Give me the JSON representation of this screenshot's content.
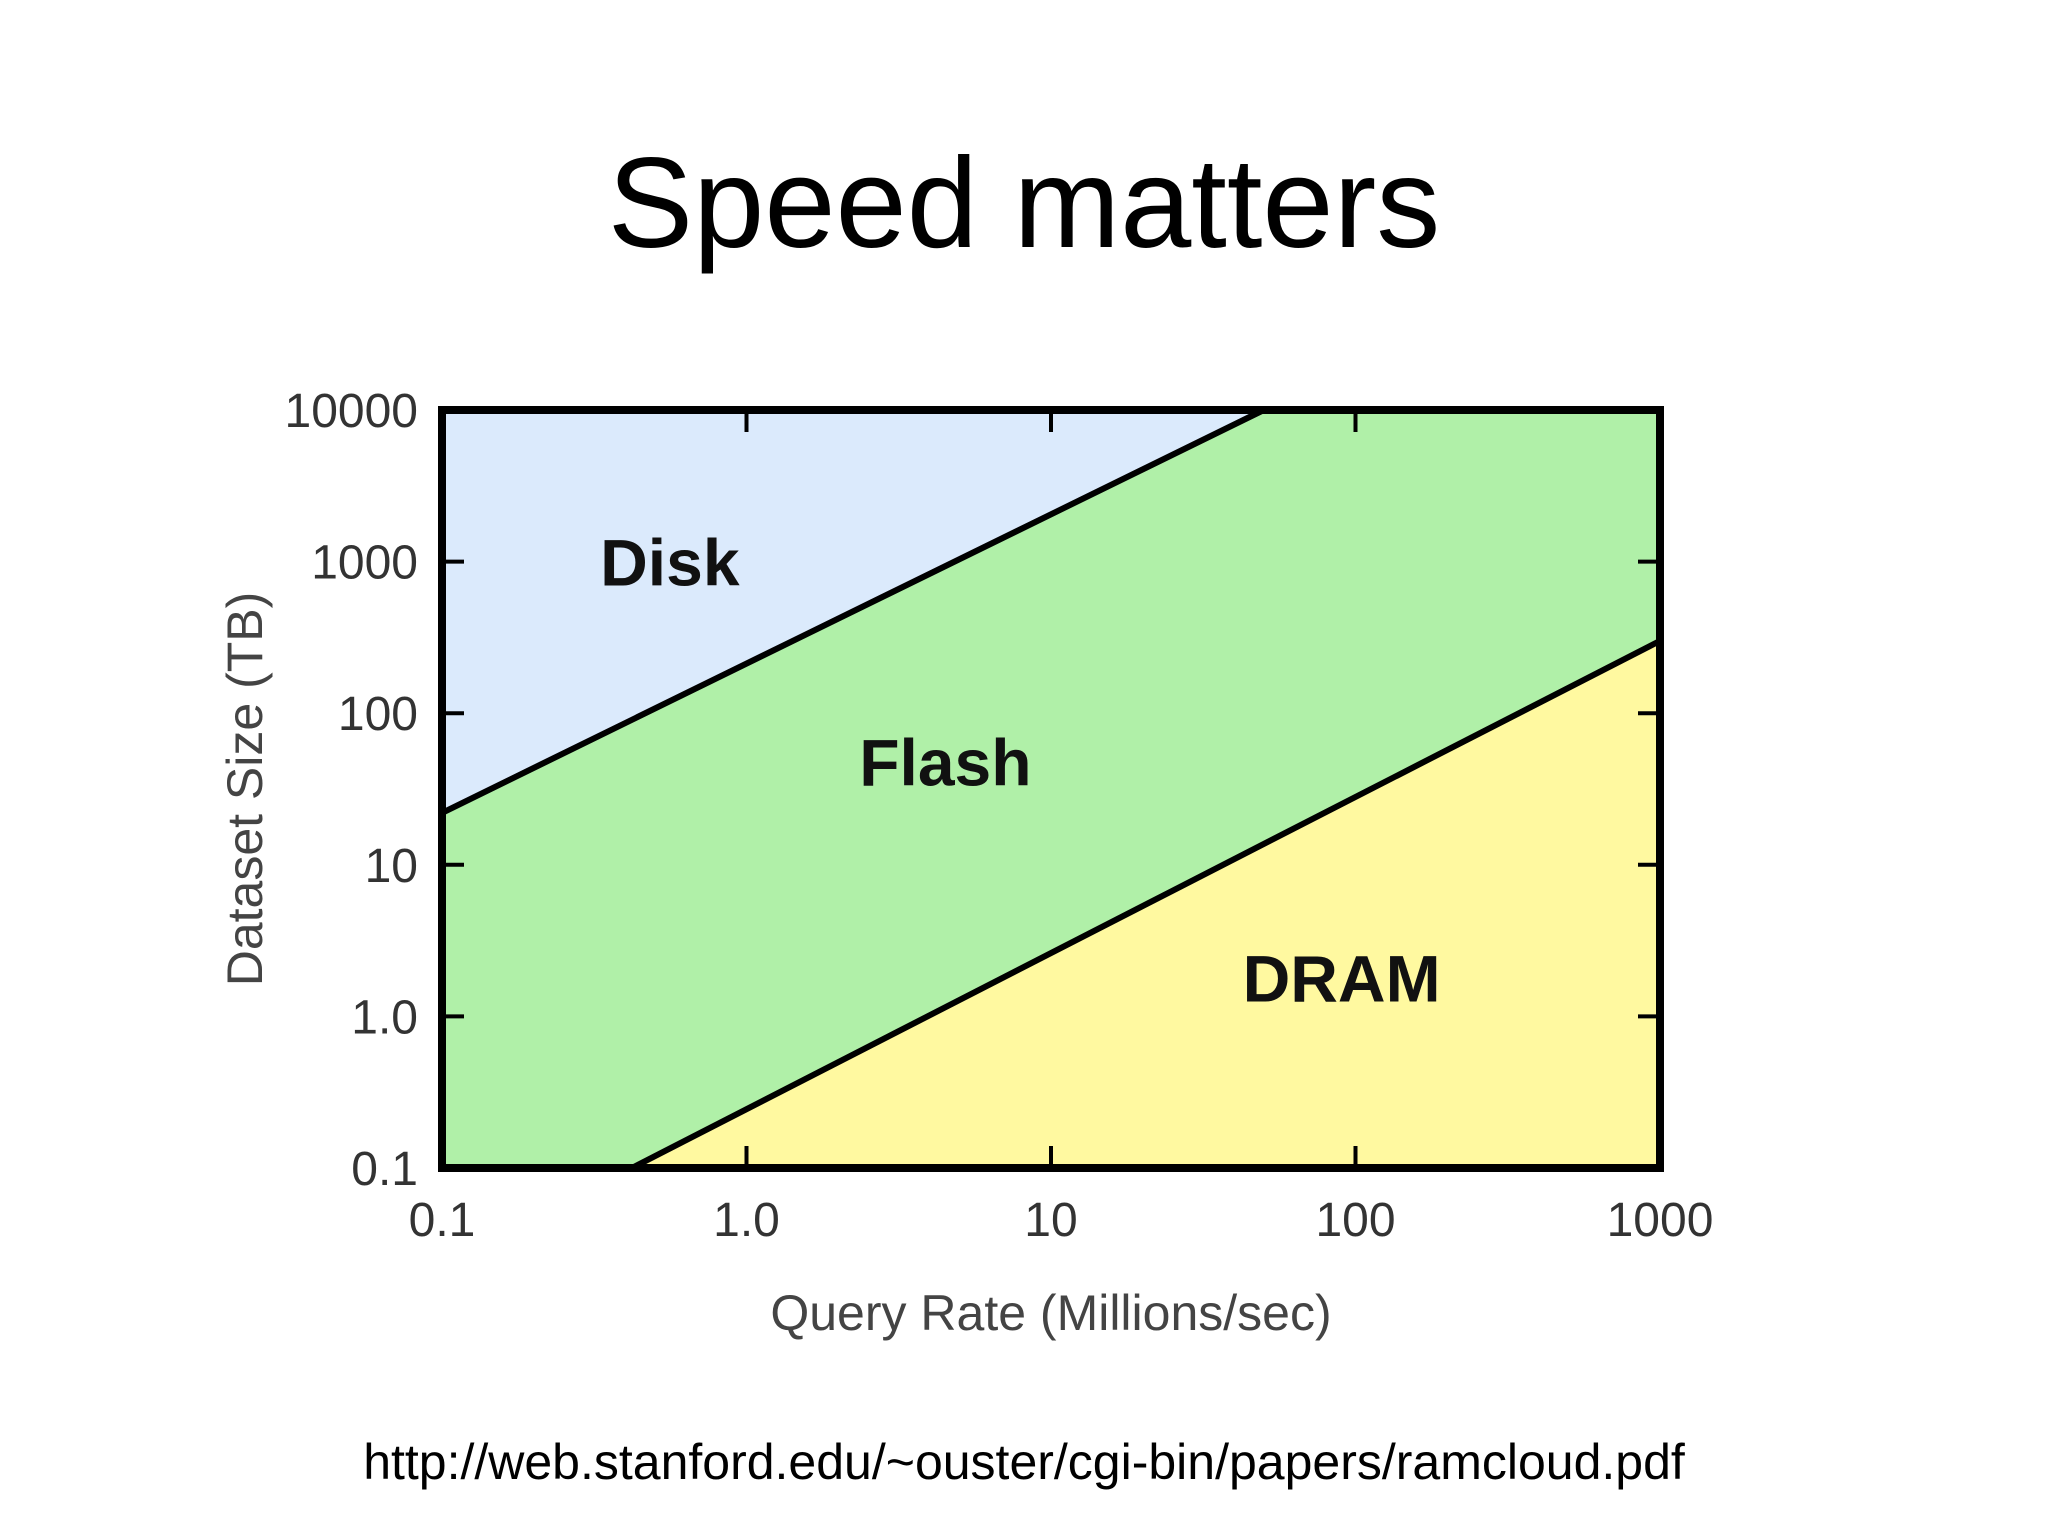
{
  "slide": {
    "title": "Speed matters",
    "source_url": "http://web.stanford.edu/~ouster/cgi-bin/papers/ramcloud.pdf"
  },
  "chart_data": {
    "type": "area",
    "title": "",
    "xlabel": "Query Rate (Millions/sec)",
    "ylabel": "Dataset Size (TB)",
    "x_scale": "log",
    "y_scale": "log",
    "xlim": [
      0.1,
      1000
    ],
    "ylim": [
      0.1,
      10000
    ],
    "x_ticks": [
      0.1,
      1.0,
      10,
      100,
      1000
    ],
    "x_tick_labels": [
      "0.1",
      "1.0",
      "10",
      "100",
      "1000"
    ],
    "y_ticks": [
      0.1,
      1.0,
      10,
      100,
      1000,
      10000
    ],
    "y_tick_labels": [
      "0.1",
      "1.0",
      "10",
      "100",
      "1000",
      "10000"
    ],
    "grid": false,
    "boundaries": [
      {
        "id": "disk-flash",
        "points": [
          [
            0.1,
            22
          ],
          [
            50,
            10000
          ]
        ]
      },
      {
        "id": "flash-dram",
        "points": [
          [
            0.42,
            0.1
          ],
          [
            1000,
            300
          ]
        ]
      }
    ],
    "regions": [
      {
        "name": "Disk",
        "color": "#dbeafc",
        "label_at": [
          0.56,
          1000
        ]
      },
      {
        "name": "Flash",
        "color": "#b0f0a8",
        "label_at": [
          4.5,
          48
        ]
      },
      {
        "name": "DRAM",
        "color": "#fff9a0",
        "label_at": [
          90,
          1.8
        ]
      }
    ],
    "boundary_color": "#000000",
    "frame_color": "#000000"
  }
}
